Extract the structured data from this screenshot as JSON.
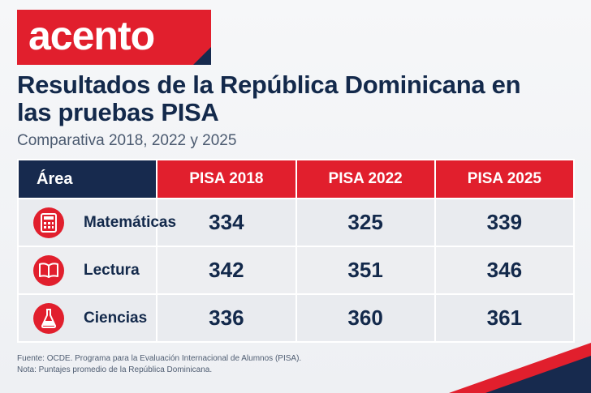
{
  "logo": {
    "text": "acento"
  },
  "header": {
    "title": "Resultados de la República Dominicana en las pruebas PISA",
    "subtitle": "Comparativa 2018, 2022 y 2025"
  },
  "table": {
    "columns": [
      "Área",
      "PISA 2018",
      "PISA 2022",
      "PISA 2025"
    ],
    "rows": [
      {
        "area": "Matemáticas",
        "icon": "calculator-icon",
        "values": [
          "334",
          "325",
          "339"
        ]
      },
      {
        "area": "Lectura",
        "icon": "book-icon",
        "values": [
          "342",
          "351",
          "346"
        ]
      },
      {
        "area": "Ciencias",
        "icon": "flask-icon",
        "values": [
          "336",
          "360",
          "361"
        ]
      }
    ]
  },
  "footnotes": [
    "Fuente: OCDE. Programa para la Evaluación Internacional de Alumnos (PISA).",
    "Nota: Puntajes promedio de la República Dominicana."
  ],
  "colors": {
    "brand_red": "#e11f2d",
    "navy": "#172a4e",
    "background": "#f2f3f5"
  }
}
